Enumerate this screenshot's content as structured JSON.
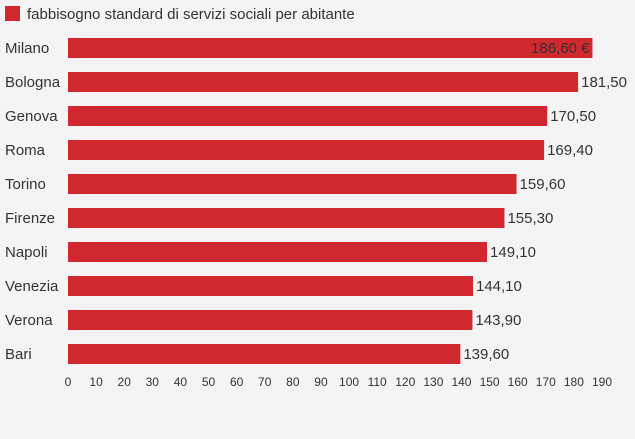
{
  "chart_data": {
    "type": "bar",
    "orientation": "horizontal",
    "legend": "fabbisogno standard di servizi sociali per abitante",
    "legend_position": "top-left",
    "bar_color": "#d0282e",
    "categories": [
      "Milano",
      "Bologna",
      "Genova",
      "Roma",
      "Torino",
      "Firenze",
      "Napoli",
      "Venezia",
      "Verona",
      "Bari"
    ],
    "values": [
      186.6,
      181.5,
      170.5,
      169.4,
      159.6,
      155.3,
      149.1,
      144.1,
      143.9,
      139.6
    ],
    "value_labels": [
      "186,60 €",
      "181,50",
      "170,50",
      "169,40",
      "159,60",
      "155,30",
      "149,10",
      "144,10",
      "143,90",
      "139,60"
    ],
    "xlim": [
      0,
      190
    ],
    "x_ticks": [
      0,
      10,
      20,
      30,
      40,
      50,
      60,
      70,
      80,
      90,
      100,
      110,
      120,
      130,
      140,
      150,
      160,
      170,
      180,
      190
    ],
    "grid": false
  }
}
